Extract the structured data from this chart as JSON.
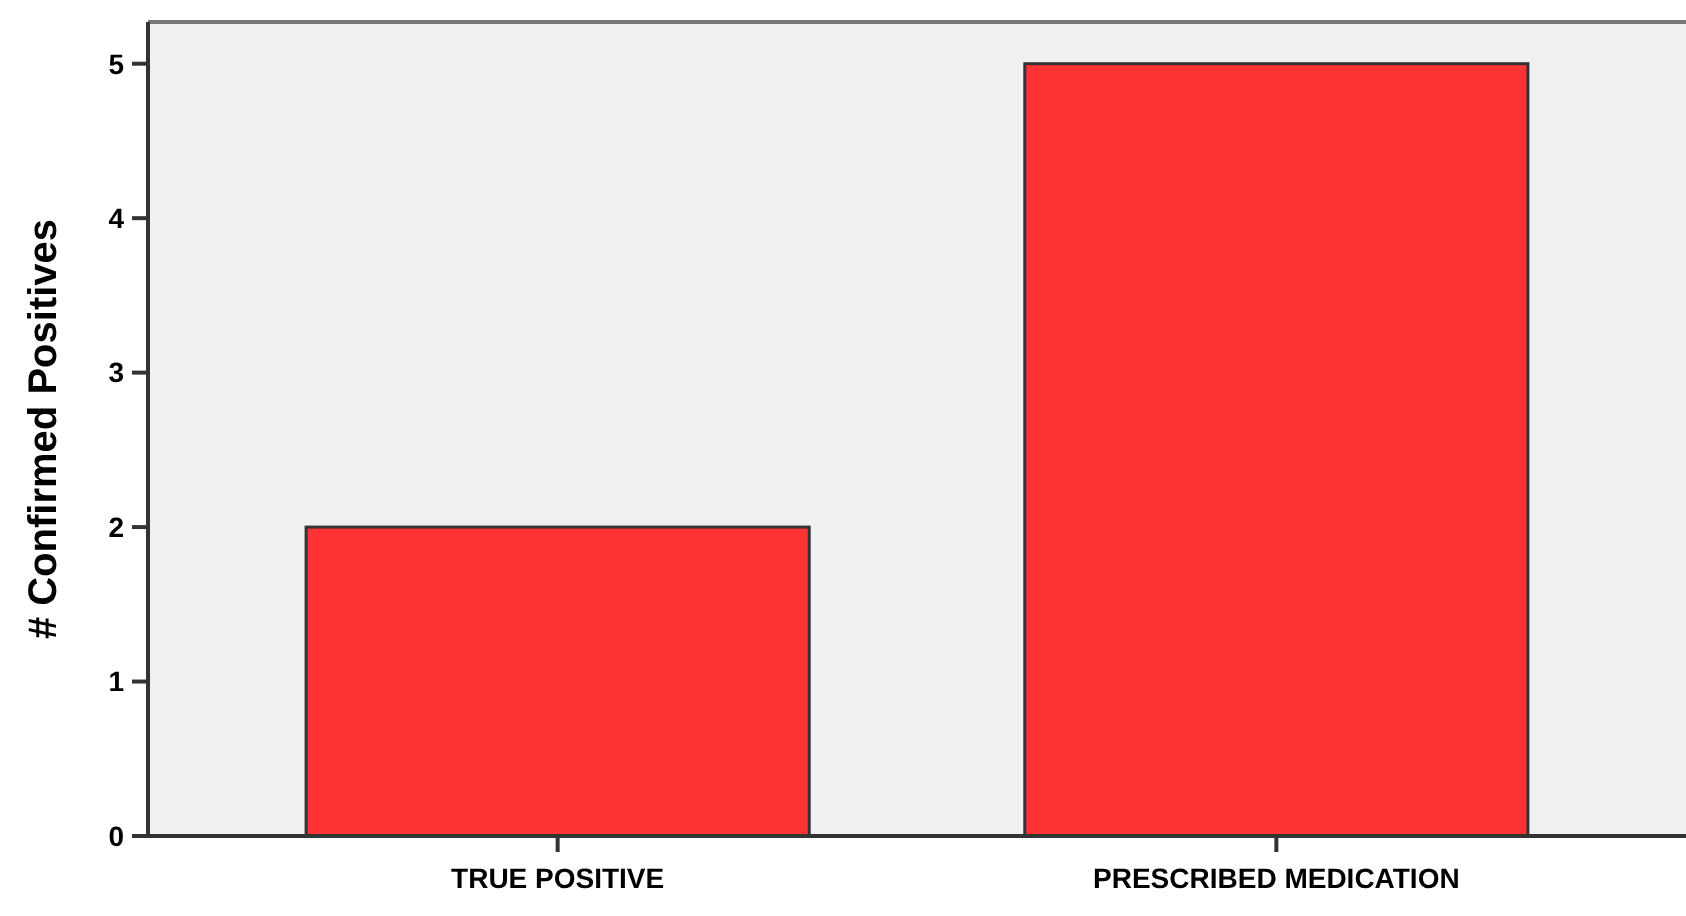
{
  "chart_data": {
    "type": "bar",
    "ylabel": "# Confirmed Positives",
    "categories": [
      "TRUE POSITIVE",
      "PRESCRIBED MEDICATION"
    ],
    "values": [
      2,
      5
    ],
    "color": "#ff3333",
    "ylim": [
      0,
      5.27
    ],
    "yticks": [
      0,
      1,
      2,
      3,
      4,
      5
    ],
    "grid": false
  }
}
